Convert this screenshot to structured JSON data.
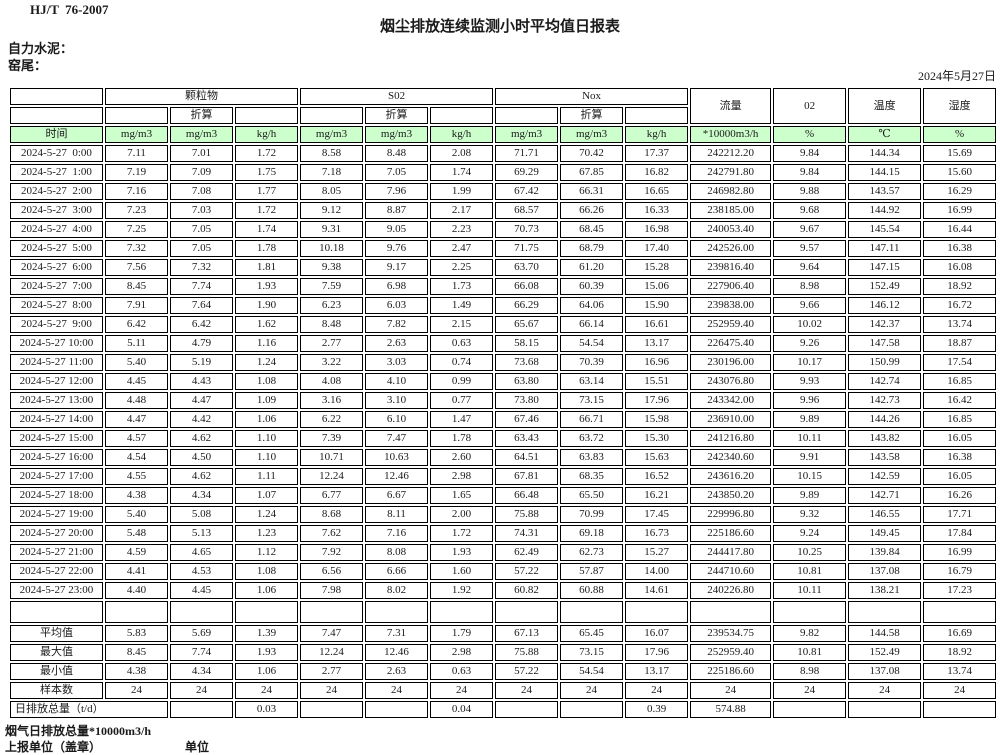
{
  "meta": {
    "standard_code": "HJ/T  76-2007",
    "title": "烟尘排放连续监测小时平均值日报表",
    "company": "自力水泥：",
    "location": "窑尾：",
    "date": "2024年5月27日"
  },
  "table": {
    "time_label": "时间",
    "converted_label": "折算",
    "groups": [
      "颗粒物",
      "S02",
      "Nox",
      "流量",
      "02",
      "温度",
      "湿度"
    ],
    "units": [
      "mg/m3",
      "mg/m3",
      "kg/h",
      "mg/m3",
      "mg/m3",
      "kg/h",
      "mg/m3",
      "mg/m3",
      "kg/h",
      "*10000m3/h",
      "%",
      "℃",
      "%"
    ],
    "data_rows": [
      [
        "2024-5-27  0:00",
        "7.11",
        "7.01",
        "1.72",
        "8.58",
        "8.48",
        "2.08",
        "71.71",
        "70.42",
        "17.37",
        "242212.20",
        "9.84",
        "144.34",
        "15.69"
      ],
      [
        "2024-5-27  1:00",
        "7.19",
        "7.09",
        "1.75",
        "7.18",
        "7.05",
        "1.74",
        "69.29",
        "67.85",
        "16.82",
        "242791.80",
        "9.84",
        "144.15",
        "15.60"
      ],
      [
        "2024-5-27  2:00",
        "7.16",
        "7.08",
        "1.77",
        "8.05",
        "7.96",
        "1.99",
        "67.42",
        "66.31",
        "16.65",
        "246982.80",
        "9.88",
        "143.57",
        "16.29"
      ],
      [
        "2024-5-27  3:00",
        "7.23",
        "7.03",
        "1.72",
        "9.12",
        "8.87",
        "2.17",
        "68.57",
        "66.26",
        "16.33",
        "238185.00",
        "9.68",
        "144.92",
        "16.99"
      ],
      [
        "2024-5-27  4:00",
        "7.25",
        "7.05",
        "1.74",
        "9.31",
        "9.05",
        "2.23",
        "70.73",
        "68.45",
        "16.98",
        "240053.40",
        "9.67",
        "145.54",
        "16.44"
      ],
      [
        "2024-5-27  5:00",
        "7.32",
        "7.05",
        "1.78",
        "10.18",
        "9.76",
        "2.47",
        "71.75",
        "68.79",
        "17.40",
        "242526.00",
        "9.57",
        "147.11",
        "16.38"
      ],
      [
        "2024-5-27  6:00",
        "7.56",
        "7.32",
        "1.81",
        "9.38",
        "9.17",
        "2.25",
        "63.70",
        "61.20",
        "15.28",
        "239816.40",
        "9.64",
        "147.15",
        "16.08"
      ],
      [
        "2024-5-27  7:00",
        "8.45",
        "7.74",
        "1.93",
        "7.59",
        "6.98",
        "1.73",
        "66.08",
        "60.39",
        "15.06",
        "227906.40",
        "8.98",
        "152.49",
        "18.92"
      ],
      [
        "2024-5-27  8:00",
        "7.91",
        "7.64",
        "1.90",
        "6.23",
        "6.03",
        "1.49",
        "66.29",
        "64.06",
        "15.90",
        "239838.00",
        "9.66",
        "146.12",
        "16.72"
      ],
      [
        "2024-5-27  9:00",
        "6.42",
        "6.42",
        "1.62",
        "8.48",
        "7.82",
        "2.15",
        "65.67",
        "66.14",
        "16.61",
        "252959.40",
        "10.02",
        "142.37",
        "13.74"
      ],
      [
        "2024-5-27 10:00",
        "5.11",
        "4.79",
        "1.16",
        "2.77",
        "2.63",
        "0.63",
        "58.15",
        "54.54",
        "13.17",
        "226475.40",
        "9.26",
        "147.58",
        "18.87"
      ],
      [
        "2024-5-27 11:00",
        "5.40",
        "5.19",
        "1.24",
        "3.22",
        "3.03",
        "0.74",
        "73.68",
        "70.39",
        "16.96",
        "230196.00",
        "10.17",
        "150.99",
        "17.54"
      ],
      [
        "2024-5-27 12:00",
        "4.45",
        "4.43",
        "1.08",
        "4.08",
        "4.10",
        "0.99",
        "63.80",
        "63.14",
        "15.51",
        "243076.80",
        "9.93",
        "142.74",
        "16.85"
      ],
      [
        "2024-5-27 13:00",
        "4.48",
        "4.47",
        "1.09",
        "3.16",
        "3.10",
        "0.77",
        "73.80",
        "73.15",
        "17.96",
        "243342.00",
        "9.96",
        "142.73",
        "16.42"
      ],
      [
        "2024-5-27 14:00",
        "4.47",
        "4.42",
        "1.06",
        "6.22",
        "6.10",
        "1.47",
        "67.46",
        "66.71",
        "15.98",
        "236910.00",
        "9.89",
        "144.26",
        "16.85"
      ],
      [
        "2024-5-27 15:00",
        "4.57",
        "4.62",
        "1.10",
        "7.39",
        "7.47",
        "1.78",
        "63.43",
        "63.72",
        "15.30",
        "241216.80",
        "10.11",
        "143.82",
        "16.05"
      ],
      [
        "2024-5-27 16:00",
        "4.54",
        "4.50",
        "1.10",
        "10.71",
        "10.63",
        "2.60",
        "64.51",
        "63.83",
        "15.63",
        "242340.60",
        "9.91",
        "143.58",
        "16.38"
      ],
      [
        "2024-5-27 17:00",
        "4.55",
        "4.62",
        "1.11",
        "12.24",
        "12.46",
        "2.98",
        "67.81",
        "68.35",
        "16.52",
        "243616.20",
        "10.15",
        "142.59",
        "16.05"
      ],
      [
        "2024-5-27 18:00",
        "4.38",
        "4.34",
        "1.07",
        "6.77",
        "6.67",
        "1.65",
        "66.48",
        "65.50",
        "16.21",
        "243850.20",
        "9.89",
        "142.71",
        "16.26"
      ],
      [
        "2024-5-27 19:00",
        "5.40",
        "5.08",
        "1.24",
        "8.68",
        "8.11",
        "2.00",
        "75.88",
        "70.99",
        "17.45",
        "229996.80",
        "9.32",
        "146.55",
        "17.71"
      ],
      [
        "2024-5-27 20:00",
        "5.48",
        "5.13",
        "1.23",
        "7.62",
        "7.16",
        "1.72",
        "74.31",
        "69.18",
        "16.73",
        "225186.60",
        "9.24",
        "149.45",
        "17.84"
      ],
      [
        "2024-5-27 21:00",
        "4.59",
        "4.65",
        "1.12",
        "7.92",
        "8.08",
        "1.93",
        "62.49",
        "62.73",
        "15.27",
        "244417.80",
        "10.25",
        "139.84",
        "16.99"
      ],
      [
        "2024-5-27 22:00",
        "4.41",
        "4.53",
        "1.08",
        "6.56",
        "6.66",
        "1.60",
        "57.22",
        "57.87",
        "14.00",
        "244710.60",
        "10.81",
        "137.08",
        "16.79"
      ],
      [
        "2024-5-27 23:00",
        "4.40",
        "4.45",
        "1.06",
        "7.98",
        "8.02",
        "1.92",
        "60.82",
        "60.88",
        "14.61",
        "240226.80",
        "10.11",
        "138.21",
        "17.23"
      ]
    ],
    "summary_rows": [
      {
        "label": "平均值",
        "colspan": 1,
        "values": [
          "5.83",
          "5.69",
          "1.39",
          "7.47",
          "7.31",
          "1.79",
          "67.13",
          "65.45",
          "16.07",
          "239534.75",
          "9.82",
          "144.58",
          "16.69"
        ]
      },
      {
        "label": "最大值",
        "colspan": 1,
        "values": [
          "8.45",
          "7.74",
          "1.93",
          "12.24",
          "12.46",
          "2.98",
          "75.88",
          "73.15",
          "17.96",
          "252959.40",
          "10.81",
          "152.49",
          "18.92"
        ]
      },
      {
        "label": "最小值",
        "colspan": 1,
        "values": [
          "4.38",
          "4.34",
          "1.06",
          "2.77",
          "2.63",
          "0.63",
          "57.22",
          "54.54",
          "13.17",
          "225186.60",
          "8.98",
          "137.08",
          "13.74"
        ]
      },
      {
        "label": "样本数",
        "colspan": 1,
        "values": [
          "24",
          "24",
          "24",
          "24",
          "24",
          "24",
          "24",
          "24",
          "24",
          "24",
          "24",
          "24",
          "24"
        ]
      },
      {
        "label": "日排放总量（t/d）",
        "colspan": 2,
        "align": "left",
        "values": [
          "",
          "0.03",
          "",
          "",
          "0.04",
          "",
          "",
          "0.39",
          "574.88",
          "",
          "",
          ""
        ]
      }
    ]
  },
  "footer": {
    "note1": "烟气日排放总量*10000m3/h",
    "note2": "上报单位（盖章）",
    "note3": "单位"
  },
  "colors": {
    "header_green": "#ccffcc",
    "border": "#000000"
  }
}
